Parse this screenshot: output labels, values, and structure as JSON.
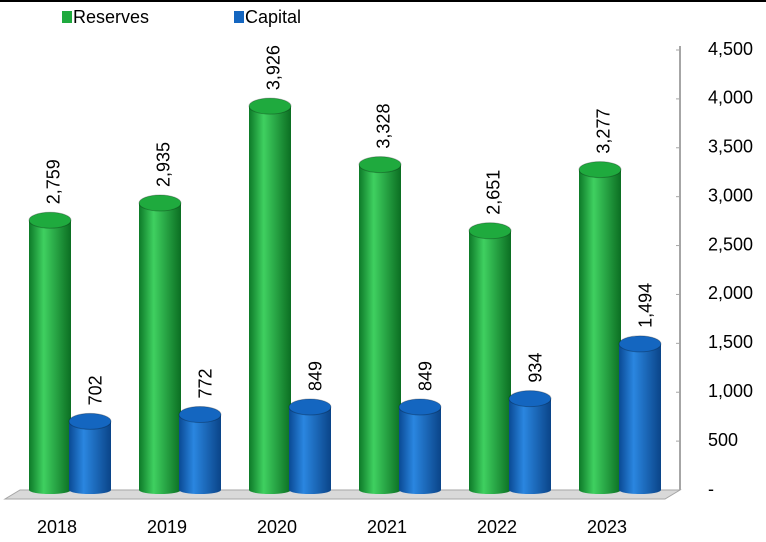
{
  "chart_data": {
    "type": "bar",
    "categories": [
      "2018",
      "2019",
      "2020",
      "2021",
      "2022",
      "2023"
    ],
    "series": [
      {
        "name": "Reserves",
        "color": "#1faa3e",
        "values": [
          2759,
          2935,
          3926,
          3328,
          2651,
          3277
        ],
        "value_labels": [
          "2,759",
          "2,935",
          "3,926",
          "3,328",
          "2,651",
          "3,277"
        ]
      },
      {
        "name": "Capital",
        "color": "#1466c0",
        "values": [
          702,
          772,
          849,
          849,
          934,
          1494
        ],
        "value_labels": [
          "702",
          "772",
          "849",
          "849",
          "934",
          "1,494"
        ]
      }
    ],
    "ylim": [
      0,
      4500
    ],
    "yticks": [
      {
        "value": 0,
        "label": "-"
      },
      500,
      {
        "value": 1000,
        "label": "1,000"
      },
      {
        "value": 1500,
        "label": "1,500"
      },
      {
        "value": 2000,
        "label": "2,000"
      },
      {
        "value": 2500,
        "label": "2,500"
      },
      {
        "value": 3000,
        "label": "3,000"
      },
      {
        "value": 3500,
        "label": "3,500"
      },
      {
        "value": 4000,
        "label": "4,000"
      },
      {
        "value": 4500,
        "label": "4,500"
      }
    ],
    "legend": "top-left"
  }
}
